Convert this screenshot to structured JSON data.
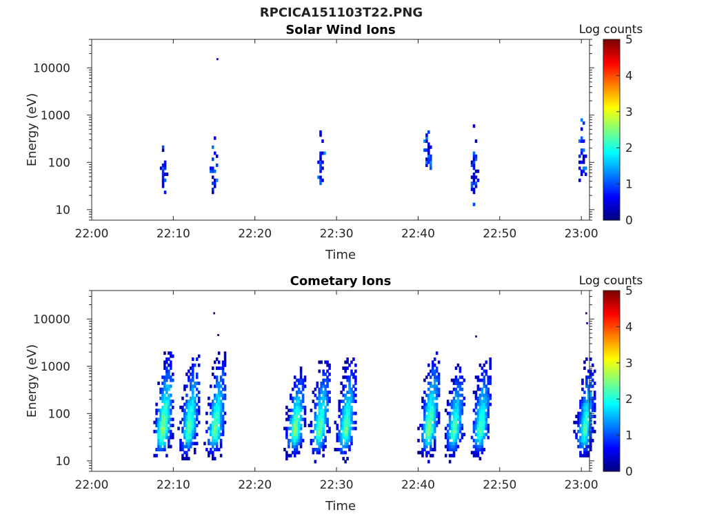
{
  "figure_title": "RPCICA151103T22.PNG",
  "chart_data": [
    {
      "type": "heatmap",
      "title": "Solar Wind Ions",
      "xlabel": "Time",
      "ylabel": "Energy (eV)",
      "x_ticks": [
        "22:00",
        "22:10",
        "22:20",
        "22:30",
        "22:40",
        "22:50",
        "23:00"
      ],
      "x_range_minutes": [
        0,
        61
      ],
      "y_ticks": [
        "10",
        "100",
        "1000",
        "10000"
      ],
      "y_scale": "log",
      "y_range_eV": [
        6,
        40000
      ],
      "colorbar": {
        "label": "Log counts",
        "ticks": [
          "0",
          "1",
          "2",
          "3",
          "4",
          "5"
        ],
        "range": [
          0,
          5
        ],
        "colormap": "jet"
      },
      "bursts": [
        {
          "t_center_min": 8.7,
          "e_center_eV": 40,
          "e_max_eV": 560,
          "peak_log_counts": 1.0
        },
        {
          "t_center_min": 14.8,
          "e_center_eV": 50,
          "e_max_eV": 420,
          "peak_log_counts": 1.3
        },
        {
          "t_center_min": 28.0,
          "e_center_eV": 100,
          "e_max_eV": 500,
          "peak_log_counts": 1.2
        },
        {
          "t_center_min": 41.0,
          "e_center_eV": 120,
          "e_max_eV": 750,
          "peak_log_counts": 1.3
        },
        {
          "t_center_min": 46.8,
          "e_center_eV": 35,
          "e_max_eV": 700,
          "peak_log_counts": 1.0
        },
        {
          "t_center_min": 60.0,
          "e_center_eV": 80,
          "e_max_eV": 1100,
          "peak_log_counts": 1.2
        }
      ],
      "isolated_points": [
        {
          "t_min": 15.3,
          "e_eV": 15000
        }
      ]
    },
    {
      "type": "heatmap",
      "title": "Cometary Ions",
      "xlabel": "Time",
      "ylabel": "Energy (eV)",
      "x_ticks": [
        "22:00",
        "22:10",
        "22:20",
        "22:30",
        "22:40",
        "22:50",
        "23:00"
      ],
      "x_range_minutes": [
        0,
        61
      ],
      "y_ticks": [
        "10",
        "100",
        "1000",
        "10000"
      ],
      "y_scale": "log",
      "y_range_eV": [
        6,
        40000
      ],
      "colorbar": {
        "label": "Log counts",
        "ticks": [
          "0",
          "1",
          "2",
          "3",
          "4",
          "5"
        ],
        "range": [
          0,
          5
        ],
        "colormap": "jet"
      },
      "bursts": [
        {
          "t_center_min": 8.6,
          "e_center_eV": 40,
          "e_max_eV": 1800,
          "peak_log_counts": 2.8
        },
        {
          "t_center_min": 11.8,
          "e_center_eV": 40,
          "e_max_eV": 2000,
          "peak_log_counts": 2.5
        },
        {
          "t_center_min": 15.0,
          "e_center_eV": 40,
          "e_max_eV": 1800,
          "peak_log_counts": 2.6
        },
        {
          "t_center_min": 24.8,
          "e_center_eV": 40,
          "e_max_eV": 900,
          "peak_log_counts": 2.7
        },
        {
          "t_center_min": 27.8,
          "e_center_eV": 40,
          "e_max_eV": 1300,
          "peak_log_counts": 2.6
        },
        {
          "t_center_min": 31.0,
          "e_center_eV": 40,
          "e_max_eV": 1400,
          "peak_log_counts": 2.6
        },
        {
          "t_center_min": 41.2,
          "e_center_eV": 40,
          "e_max_eV": 2000,
          "peak_log_counts": 2.7
        },
        {
          "t_center_min": 44.3,
          "e_center_eV": 40,
          "e_max_eV": 1000,
          "peak_log_counts": 2.5
        },
        {
          "t_center_min": 47.5,
          "e_center_eV": 40,
          "e_max_eV": 1400,
          "peak_log_counts": 2.5
        },
        {
          "t_center_min": 60.3,
          "e_center_eV": 40,
          "e_max_eV": 1500,
          "peak_log_counts": 2.4
        }
      ],
      "isolated_points": [
        {
          "t_min": 14.9,
          "e_eV": 13000
        },
        {
          "t_min": 15.4,
          "e_eV": 4500
        },
        {
          "t_min": 47.0,
          "e_eV": 4200
        },
        {
          "t_min": 60.5,
          "e_eV": 13000
        },
        {
          "t_min": 60.6,
          "e_eV": 8000
        }
      ]
    }
  ]
}
